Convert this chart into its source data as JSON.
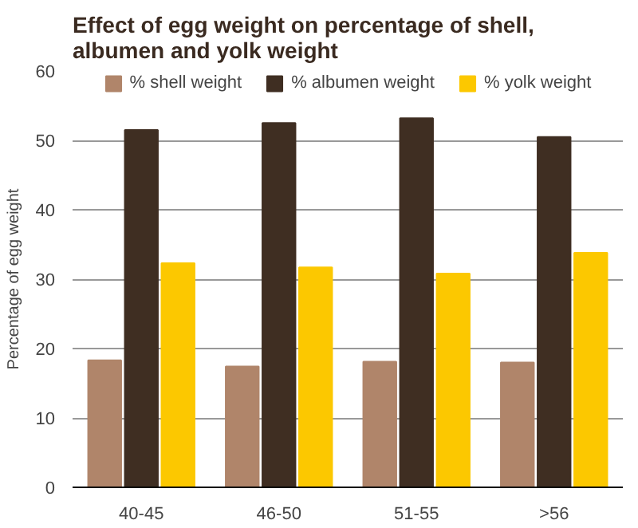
{
  "chart_data": {
    "type": "bar",
    "title": "Effect of egg weight on percentage of shell,\nalbumen and yolk weight",
    "ylabel": "Percentage of egg weight",
    "categories": [
      "40-45",
      "46-50",
      "51-55",
      ">56"
    ],
    "series": [
      {
        "name": "% shell weight",
        "color": "#b0856a",
        "values": [
          18.3,
          17.4,
          18.1,
          18.0
        ]
      },
      {
        "name": "% albumen weight",
        "color": "#3f2e22",
        "values": [
          51.5,
          52.5,
          53.2,
          50.5
        ]
      },
      {
        "name": "% yolk weight",
        "color": "#fcc800",
        "values": [
          32.3,
          31.7,
          30.8,
          33.8
        ]
      }
    ],
    "ylim": [
      0,
      60
    ],
    "yticks": [
      0,
      10,
      20,
      30,
      40,
      50,
      60
    ],
    "grid": "y",
    "legend": "top"
  }
}
